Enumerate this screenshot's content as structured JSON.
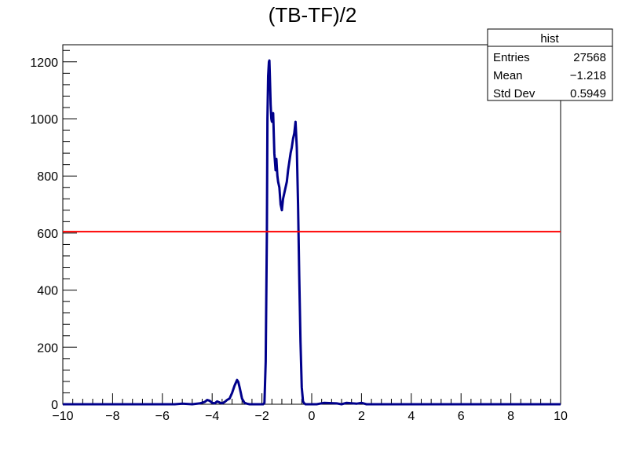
{
  "chart_data": {
    "type": "histogram",
    "title": "(TB-TF)/2",
    "xlabel": "",
    "ylabel": "",
    "xlim": [
      -10,
      10
    ],
    "ylim": [
      0,
      1260
    ],
    "x_ticks": [
      -10,
      -8,
      -6,
      -4,
      -2,
      0,
      2,
      4,
      6,
      8,
      10
    ],
    "x_tick_labels": [
      "−10",
      "−8",
      "−6",
      "−4",
      "−2",
      "0",
      "2",
      "4",
      "6",
      "8",
      "10"
    ],
    "y_ticks": [
      0,
      200,
      400,
      600,
      800,
      1000,
      1200
    ],
    "y_tick_labels": [
      "0",
      "200",
      "400",
      "600",
      "800",
      "1000",
      "1200"
    ],
    "grid": false,
    "series": [
      {
        "color": "#00008b",
        "x": [
          -10,
          -5.5,
          -5.2,
          -4.8,
          -4.5,
          -4.3,
          -4.2,
          -4.1,
          -4.0,
          -3.9,
          -3.8,
          -3.7,
          -3.6,
          -3.5,
          -3.4,
          -3.3,
          -3.2,
          -3.1,
          -3.0,
          -2.95,
          -2.9,
          -2.85,
          -2.8,
          -2.7,
          -2.6,
          -2.5,
          -2.4,
          -2.2,
          -2.0,
          -1.95,
          -1.9,
          -1.85,
          -1.8,
          -1.78,
          -1.75,
          -1.72,
          -1.7,
          -1.68,
          -1.65,
          -1.62,
          -1.6,
          -1.58,
          -1.55,
          -1.5,
          -1.45,
          -1.42,
          -1.4,
          -1.38,
          -1.35,
          -1.3,
          -1.25,
          -1.2,
          -1.15,
          -1.1,
          -1.05,
          -1.0,
          -0.95,
          -0.9,
          -0.85,
          -0.8,
          -0.75,
          -0.7,
          -0.65,
          -0.6,
          -0.55,
          -0.5,
          -0.45,
          -0.4,
          -0.35,
          -0.3,
          -0.25,
          -0.2,
          -0.1,
          0.0,
          0.2,
          0.5,
          1.0,
          1.2,
          1.4,
          1.8,
          2.0,
          2.2,
          3.0,
          5.0,
          7.0,
          10
        ],
        "y": [
          0,
          0,
          2,
          0,
          3,
          8,
          15,
          12,
          5,
          3,
          10,
          6,
          3,
          8,
          15,
          20,
          40,
          65,
          85,
          78,
          60,
          40,
          20,
          5,
          2,
          0,
          0,
          0,
          0,
          0,
          5,
          150,
          600,
          1000,
          1150,
          1200,
          1205,
          1150,
          1050,
          1000,
          990,
          1010,
          1020,
          880,
          820,
          860,
          830,
          800,
          780,
          760,
          700,
          680,
          720,
          740,
          760,
          780,
          820,
          850,
          880,
          900,
          930,
          950,
          990,
          900,
          700,
          450,
          220,
          60,
          10,
          3,
          0,
          0,
          0,
          0,
          0,
          5,
          3,
          0,
          5,
          2,
          5,
          0,
          0,
          0,
          0,
          0
        ]
      },
      {
        "color": "#ff0000",
        "x": [
          -10,
          10
        ],
        "y": [
          605,
          605
        ]
      }
    ],
    "stats": {
      "name": "hist",
      "rows": [
        {
          "label": "Entries",
          "value": "27568"
        },
        {
          "label": "Mean",
          "value": "−1.218"
        },
        {
          "label": "Std Dev",
          "value": "0.5949"
        }
      ]
    }
  }
}
